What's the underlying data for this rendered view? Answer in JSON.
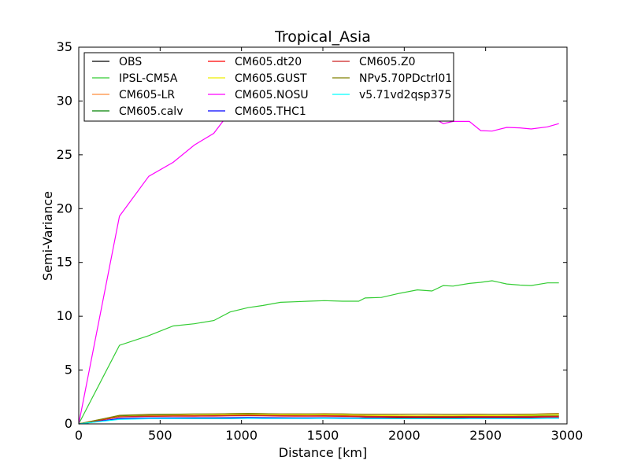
{
  "chart_data": {
    "type": "line",
    "title": "Tropical_Asia",
    "xlabel": "Distance [km]",
    "ylabel": "Semi-Variance",
    "xlim": [
      0,
      3000
    ],
    "ylim": [
      0,
      35
    ],
    "xticks": [
      0,
      500,
      1000,
      1500,
      2000,
      2500,
      3000
    ],
    "yticks": [
      0,
      5,
      10,
      15,
      20,
      25,
      30,
      35
    ],
    "grid": false,
    "legend_position": "top-left",
    "legend_columns": 3,
    "x": [
      0,
      250,
      430,
      580,
      710,
      830,
      930,
      1040,
      1130,
      1240,
      1330,
      1410,
      1510,
      1620,
      1720,
      1760,
      1860,
      1960,
      2080,
      2170,
      2240,
      2300,
      2400,
      2470,
      2540,
      2630,
      2710,
      2780,
      2880,
      2950
    ],
    "series": [
      {
        "name": "OBS",
        "color": "#000000",
        "values": [
          0,
          0.45,
          0.5,
          0.5,
          0.5,
          0.5,
          0.5,
          0.52,
          0.52,
          0.52,
          0.52,
          0.53,
          0.55,
          0.55,
          0.55,
          0.55,
          0.55,
          0.55,
          0.55,
          0.55,
          0.55,
          0.55,
          0.55,
          0.55,
          0.55,
          0.55,
          0.55,
          0.55,
          0.55,
          0.55
        ]
      },
      {
        "name": "IPSL-CM5A",
        "color": "#33cc33",
        "values": [
          0,
          7.3,
          8.2,
          9.1,
          9.3,
          9.6,
          10.4,
          10.8,
          11.0,
          11.3,
          11.35,
          11.4,
          11.45,
          11.4,
          11.4,
          11.7,
          11.75,
          12.1,
          12.45,
          12.35,
          12.85,
          12.8,
          13.05,
          13.15,
          13.3,
          13.0,
          12.9,
          12.85,
          13.1,
          13.1
        ]
      },
      {
        "name": "CM605-LR",
        "color": "#ff8c3a",
        "values": [
          0,
          0.75,
          0.85,
          0.88,
          0.9,
          0.92,
          0.95,
          0.97,
          0.95,
          0.93,
          0.92,
          0.93,
          0.95,
          0.92,
          0.9,
          0.9,
          0.9,
          0.9,
          0.9,
          0.88,
          0.88,
          0.88,
          0.9,
          0.9,
          0.88,
          0.9,
          0.9,
          0.9,
          0.95,
          0.98
        ]
      },
      {
        "name": "CM605.calv",
        "color": "#008000",
        "values": [
          0,
          0.7,
          0.78,
          0.8,
          0.8,
          0.82,
          0.85,
          0.88,
          0.85,
          0.83,
          0.82,
          0.85,
          0.85,
          0.82,
          0.78,
          0.75,
          0.72,
          0.7,
          0.72,
          0.7,
          0.7,
          0.72,
          0.75,
          0.75,
          0.75,
          0.75,
          0.75,
          0.75,
          0.78,
          0.8
        ]
      },
      {
        "name": "CM605.dt20",
        "color": "#ff0000",
        "values": [
          0,
          0.65,
          0.7,
          0.72,
          0.72,
          0.73,
          0.75,
          0.77,
          0.75,
          0.73,
          0.72,
          0.72,
          0.72,
          0.7,
          0.68,
          0.66,
          0.65,
          0.63,
          0.62,
          0.62,
          0.62,
          0.62,
          0.63,
          0.63,
          0.63,
          0.63,
          0.63,
          0.63,
          0.65,
          0.66
        ]
      },
      {
        "name": "CM605.GUST",
        "color": "#eeee00",
        "values": [
          0,
          0.68,
          0.75,
          0.78,
          0.8,
          0.82,
          0.85,
          0.85,
          0.85,
          0.83,
          0.83,
          0.83,
          0.85,
          0.83,
          0.8,
          0.78,
          0.77,
          0.75,
          0.75,
          0.75,
          0.75,
          0.75,
          0.77,
          0.77,
          0.77,
          0.77,
          0.78,
          0.8,
          0.82,
          0.83
        ]
      },
      {
        "name": "CM605.NOSU",
        "color": "#ff00ff",
        "values": [
          0,
          19.3,
          23.0,
          24.3,
          25.9,
          27.0,
          29.0,
          30.0,
          30.5,
          31.0,
          31.0,
          31.2,
          31.2,
          31.0,
          30.6,
          30.3,
          30.0,
          29.6,
          29.0,
          28.5,
          27.9,
          28.1,
          28.1,
          27.25,
          27.2,
          27.55,
          27.5,
          27.4,
          27.6,
          27.9
        ]
      },
      {
        "name": "CM605.THC1",
        "color": "#0000ff",
        "values": [
          0,
          0.5,
          0.55,
          0.56,
          0.57,
          0.57,
          0.58,
          0.6,
          0.58,
          0.57,
          0.56,
          0.56,
          0.57,
          0.55,
          0.53,
          0.52,
          0.52,
          0.5,
          0.5,
          0.5,
          0.5,
          0.5,
          0.52,
          0.52,
          0.52,
          0.52,
          0.52,
          0.52,
          0.55,
          0.55
        ]
      },
      {
        "name": "CM605.Z0",
        "color": "#cc2222",
        "values": [
          0,
          0.66,
          0.72,
          0.74,
          0.75,
          0.76,
          0.78,
          0.8,
          0.78,
          0.76,
          0.75,
          0.75,
          0.76,
          0.74,
          0.72,
          0.7,
          0.69,
          0.68,
          0.67,
          0.67,
          0.67,
          0.67,
          0.68,
          0.68,
          0.68,
          0.68,
          0.68,
          0.68,
          0.7,
          0.71
        ]
      },
      {
        "name": "NPv5.70PDctrl01",
        "color": "#808000",
        "values": [
          0,
          0.8,
          0.88,
          0.9,
          0.92,
          0.93,
          0.95,
          0.97,
          0.95,
          0.93,
          0.92,
          0.93,
          0.93,
          0.92,
          0.9,
          0.88,
          0.88,
          0.88,
          0.9,
          0.9,
          0.88,
          0.88,
          0.88,
          0.88,
          0.88,
          0.88,
          0.88,
          0.9,
          0.92,
          0.95
        ]
      },
      {
        "name": "v5.71vd2qsp375",
        "color": "#00ffff",
        "values": [
          0,
          0.42,
          0.48,
          0.48,
          0.5,
          0.5,
          0.5,
          0.52,
          0.5,
          0.5,
          0.5,
          0.5,
          0.52,
          0.5,
          0.5,
          0.48,
          0.48,
          0.48,
          0.48,
          0.48,
          0.48,
          0.48,
          0.5,
          0.5,
          0.5,
          0.5,
          0.5,
          0.5,
          0.52,
          0.52
        ]
      }
    ]
  }
}
